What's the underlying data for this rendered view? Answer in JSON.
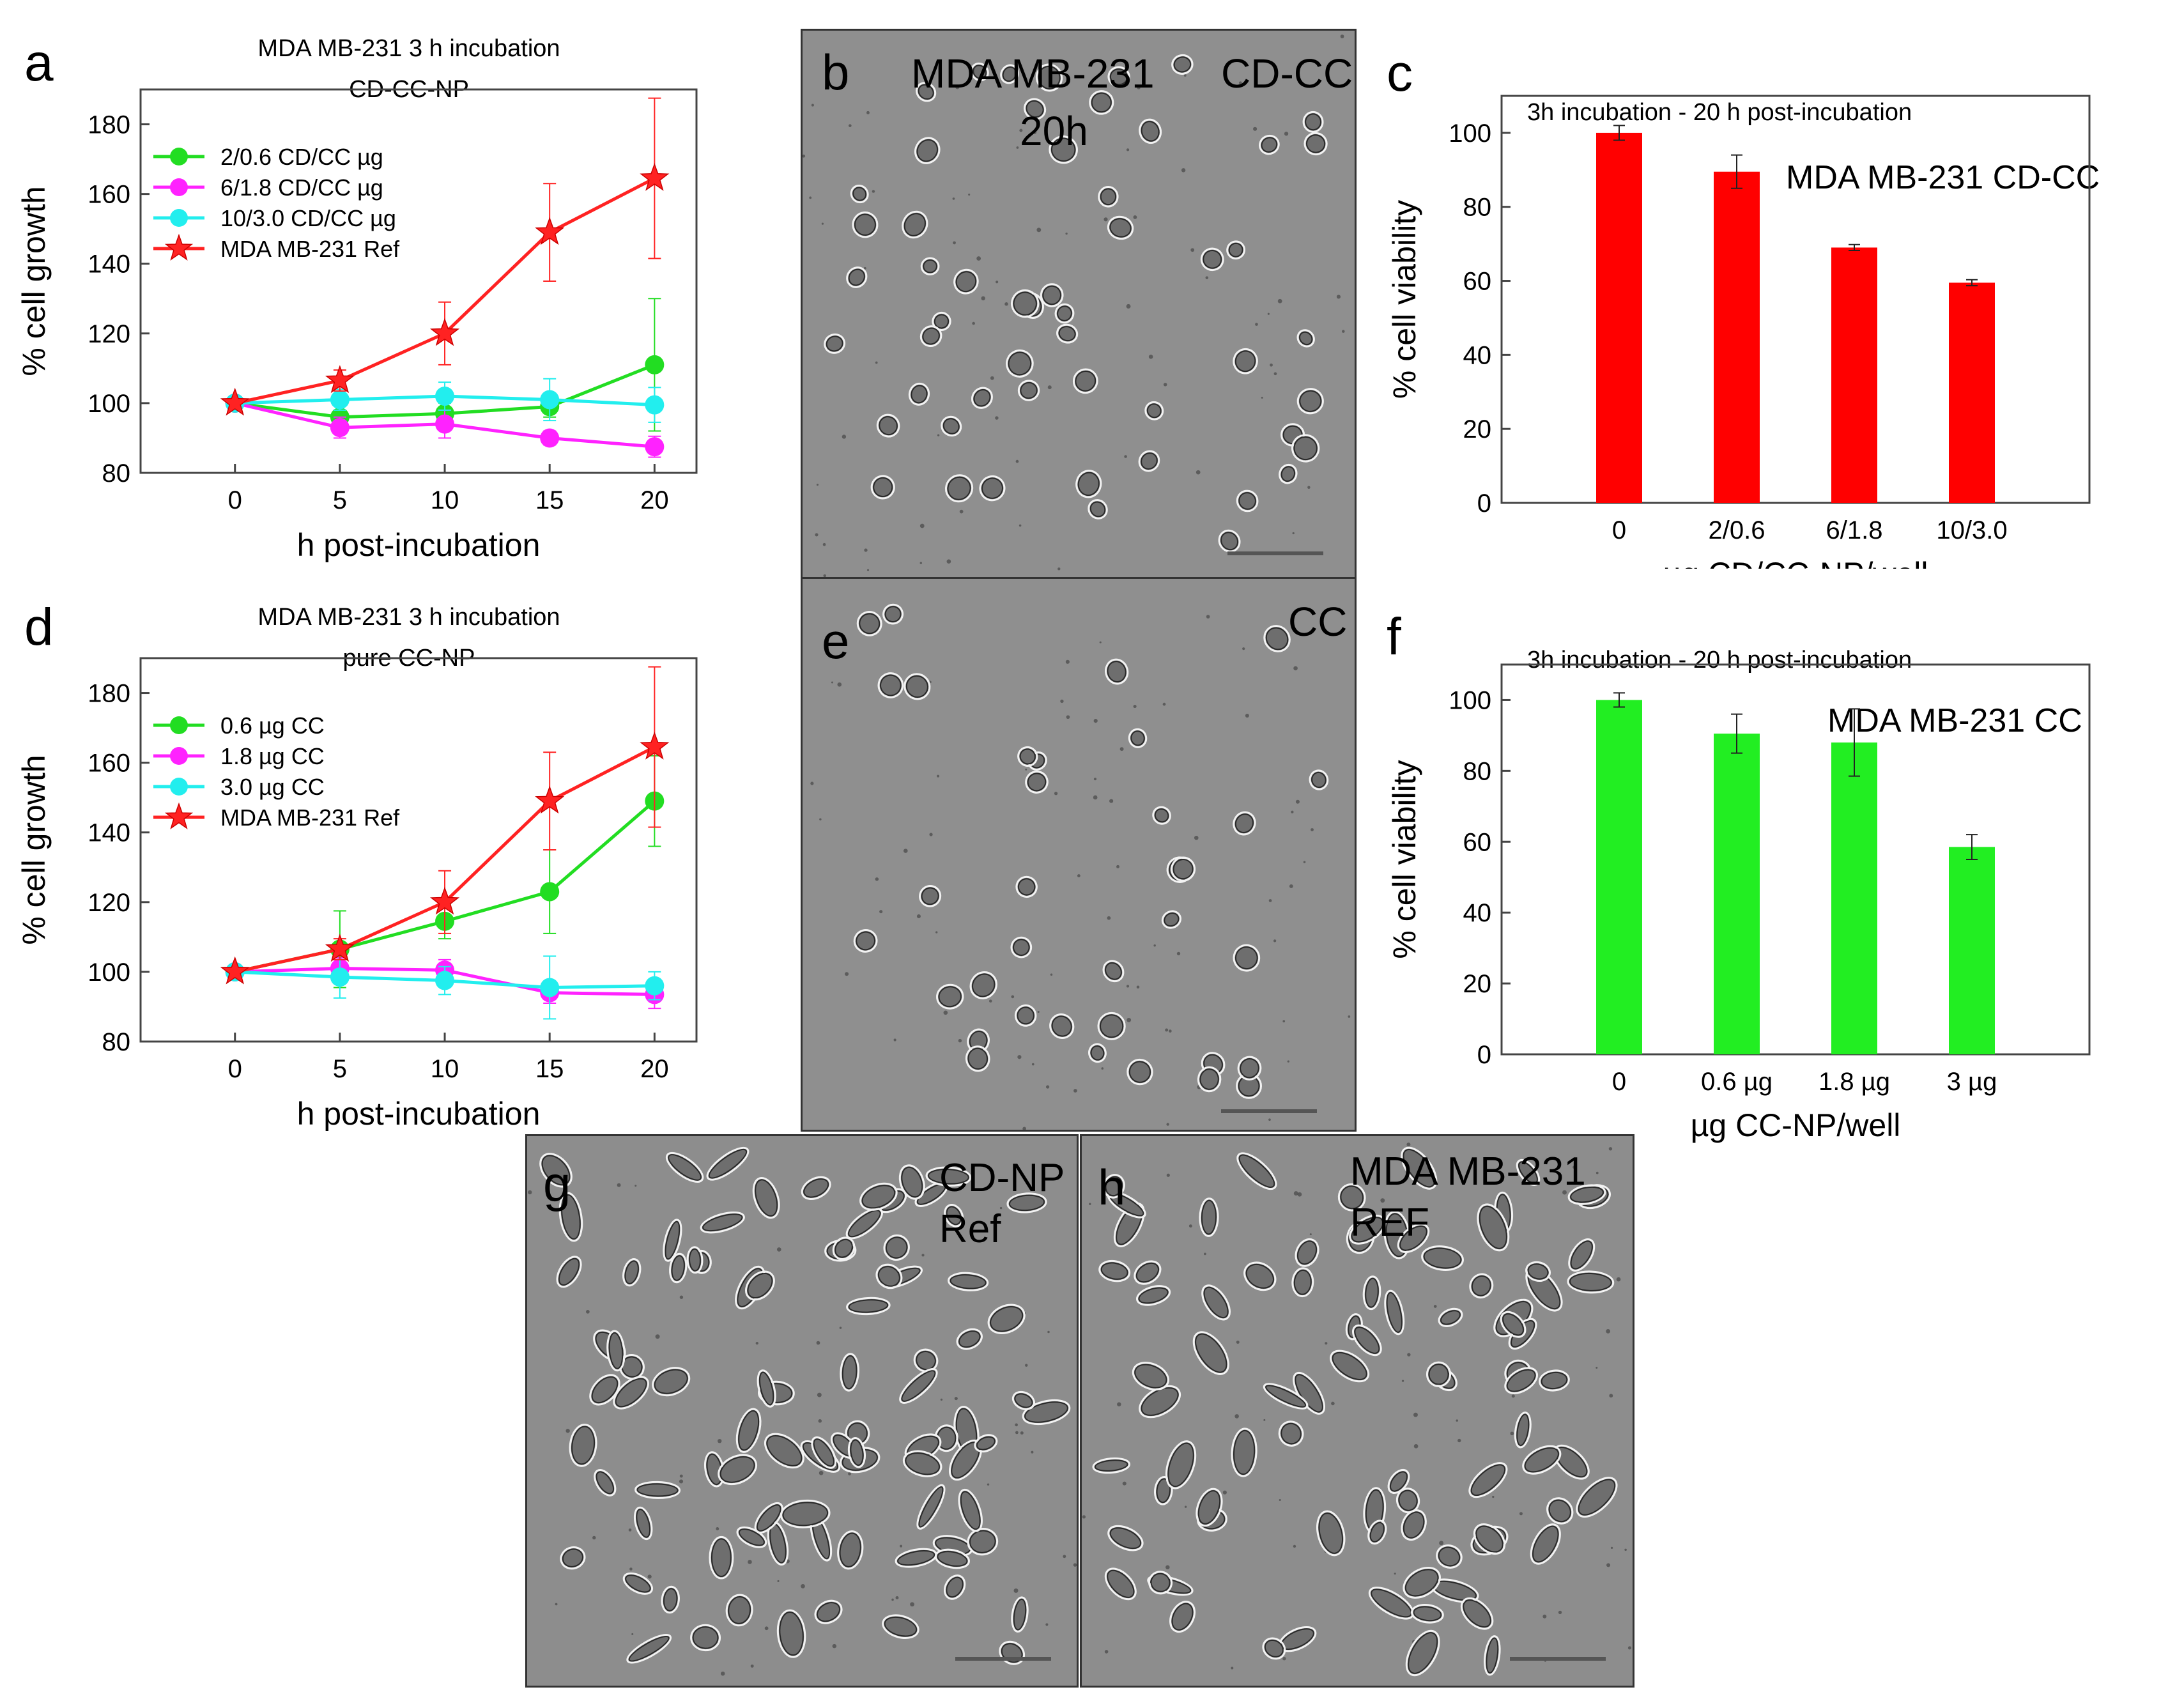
{
  "panels": {
    "a": {
      "letter": "a",
      "title": "MDA MB-231 3 h incubation",
      "subtitle": "CD-CC-NP"
    },
    "b": {
      "letter": "b",
      "text_line1": "MDA MB-231",
      "text_line2": "20h",
      "corner": "CD-CC"
    },
    "c": {
      "letter": "c"
    },
    "d": {
      "letter": "d",
      "title": "MDA MB-231 3 h incubation",
      "subtitle": "pure CC-NP"
    },
    "e": {
      "letter": "e",
      "corner": "CC"
    },
    "f": {
      "letter": "f"
    },
    "g": {
      "letter": "g",
      "label_line1": "CD-NP",
      "label_line2": "Ref"
    },
    "h": {
      "letter": "h",
      "label_line1": "MDA MB-231",
      "label_line2": "REF"
    }
  },
  "chart_data": [
    {
      "id": "a",
      "type": "line",
      "title": "MDA MB-231 3 h incubation",
      "subtitle": "CD-CC-NP",
      "xlabel": "h post-incubation",
      "ylabel": "% cell growth",
      "x": [
        0,
        5,
        10,
        15,
        20
      ],
      "xlim": [
        -4.5,
        22
      ],
      "ylim": [
        80,
        190
      ],
      "xticks": [
        "0",
        "5",
        "10",
        "15",
        "20"
      ],
      "yticks": [
        "80",
        "100",
        "120",
        "140",
        "160",
        "180"
      ],
      "yticks_values": [
        80,
        100,
        120,
        140,
        160,
        180
      ],
      "legend_position": "top-left",
      "series": [
        {
          "name": "2/0.6 CD/CC µg",
          "color": "#22dd22",
          "marker": "circle",
          "values": [
            100,
            96,
            97,
            99,
            111
          ],
          "errors": [
            0,
            2,
            3,
            3,
            19
          ]
        },
        {
          "name": "6/1.8 CD/CC µg",
          "color": "#ff22ff",
          "marker": "circle",
          "values": [
            100,
            93,
            94,
            90,
            87.5
          ],
          "errors": [
            0,
            3,
            4,
            2,
            3
          ]
        },
        {
          "name": "10/3.0 CD/CC µg",
          "color": "#22eeee",
          "marker": "circle",
          "values": [
            100,
            101,
            102,
            101,
            99.5
          ],
          "errors": [
            0,
            3,
            4,
            6,
            5
          ]
        },
        {
          "name": "MDA MB-231 Ref",
          "color": "#ff2222",
          "marker": "star",
          "values": [
            100,
            106.5,
            120,
            149,
            164.5
          ],
          "errors": [
            0,
            3,
            9,
            14,
            23
          ]
        }
      ]
    },
    {
      "id": "c",
      "type": "bar",
      "title": "3h incubation - 20 h post-incubation",
      "annotation": "MDA MB-231 CD-CC",
      "xlabel": "µg CD/CC-NP/well",
      "ylabel": "% cell viability",
      "color": "#ff0000",
      "categories": [
        "0",
        "2/0.6",
        "6/1.8",
        "10/3.0"
      ],
      "values": [
        100,
        89.5,
        69,
        59.5
      ],
      "errors": [
        2,
        4.5,
        0.8,
        0.8
      ],
      "ylim": [
        0,
        110
      ],
      "yticks": [
        "0",
        "20",
        "40",
        "60",
        "80",
        "100"
      ],
      "yticks_values": [
        0,
        20,
        40,
        60,
        80,
        100
      ]
    },
    {
      "id": "d",
      "type": "line",
      "title": "MDA MB-231 3 h incubation",
      "subtitle": "pure CC-NP",
      "xlabel": "h post-incubation",
      "ylabel": "% cell growth",
      "x": [
        0,
        5,
        10,
        15,
        20
      ],
      "xlim": [
        -4.5,
        22
      ],
      "ylim": [
        80,
        190
      ],
      "xticks": [
        "0",
        "5",
        "10",
        "15",
        "20"
      ],
      "yticks": [
        "80",
        "100",
        "120",
        "140",
        "160",
        "180"
      ],
      "yticks_values": [
        80,
        100,
        120,
        140,
        160,
        180
      ],
      "legend_position": "top-left",
      "series": [
        {
          "name": "0.6 µg CC",
          "color": "#22dd22",
          "marker": "circle",
          "values": [
            100,
            106.5,
            114.5,
            123,
            149
          ],
          "errors": [
            0,
            11,
            5,
            12,
            13
          ]
        },
        {
          "name": "1.8 µg CC",
          "color": "#ff22ff",
          "marker": "circle",
          "values": [
            100,
            101,
            100.5,
            94,
            93.5
          ],
          "errors": [
            0,
            3,
            3,
            3,
            4
          ]
        },
        {
          "name": "3.0 µg CC",
          "color": "#22eeee",
          "marker": "circle",
          "values": [
            100,
            98.5,
            97.5,
            95.5,
            96
          ],
          "errors": [
            0,
            6,
            4,
            9,
            4
          ]
        },
        {
          "name": "MDA MB-231 Ref",
          "color": "#ff2222",
          "marker": "star",
          "values": [
            100,
            106.5,
            120,
            149,
            164.5
          ],
          "errors": [
            0,
            3,
            9,
            14,
            23
          ]
        }
      ]
    },
    {
      "id": "f",
      "type": "bar",
      "title": "3h incubation - 20 h post-incubation",
      "annotation": "MDA MB-231 CC",
      "xlabel": "µg CC-NP/well",
      "ylabel": "% cell viability",
      "color": "#22ee22",
      "categories": [
        "0",
        "0.6 µg",
        "1.8 µg",
        "3 µg"
      ],
      "values": [
        100,
        90.5,
        88,
        58.5
      ],
      "errors": [
        2,
        5.5,
        9.5,
        3.5
      ],
      "ylim": [
        0,
        110
      ],
      "yticks": [
        "0",
        "20",
        "40",
        "60",
        "80",
        "100"
      ],
      "yticks_values": [
        0,
        20,
        40,
        60,
        80,
        100
      ]
    }
  ]
}
